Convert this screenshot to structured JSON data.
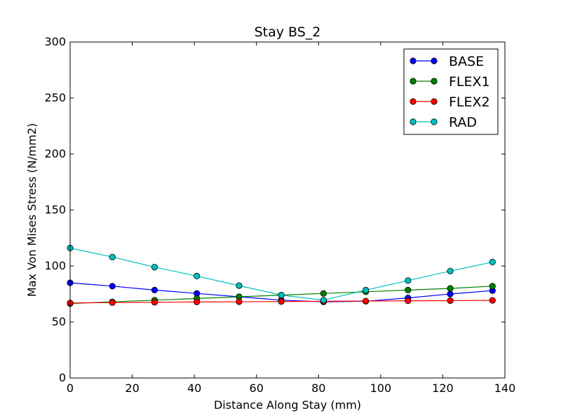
{
  "chart_data": {
    "type": "line",
    "title": "Stay BS_2",
    "xlabel": "Distance Along Stay (mm)",
    "ylabel": "Max Von Mises Stress (N/mm2)",
    "xlim": [
      0,
      140
    ],
    "ylim": [
      0,
      300
    ],
    "xticks": [
      "0",
      "20",
      "40",
      "60",
      "80",
      "100",
      "120",
      "140"
    ],
    "yticks": [
      "0",
      "50",
      "100",
      "150",
      "200",
      "250",
      "300"
    ],
    "grid": false,
    "legend_position": "top-right",
    "x": [
      0,
      13.6,
      27.2,
      40.8,
      54.4,
      68.0,
      81.6,
      95.2,
      108.8,
      122.4,
      136.0
    ],
    "series": [
      {
        "name": "BASE",
        "color": "#0000ff",
        "values": [
          85,
          82,
          78.5,
          75.5,
          72.5,
          69.5,
          68,
          68.5,
          71.5,
          75,
          78
        ]
      },
      {
        "name": "FLEX1",
        "color": "#008000",
        "values": [
          66.5,
          68,
          69.5,
          71,
          72.5,
          74,
          75.5,
          77,
          78.5,
          80,
          82
        ]
      },
      {
        "name": "FLEX2",
        "color": "#ff0000",
        "values": [
          67,
          67.3,
          67.6,
          67.9,
          68.1,
          68.3,
          68.5,
          68.7,
          68.9,
          69.1,
          69.3
        ]
      },
      {
        "name": "RAD",
        "color": "#00bfbf",
        "values": [
          116,
          108,
          99,
          91,
          82.5,
          74,
          69.5,
          78.5,
          87,
          95.5,
          103.5
        ]
      }
    ]
  }
}
